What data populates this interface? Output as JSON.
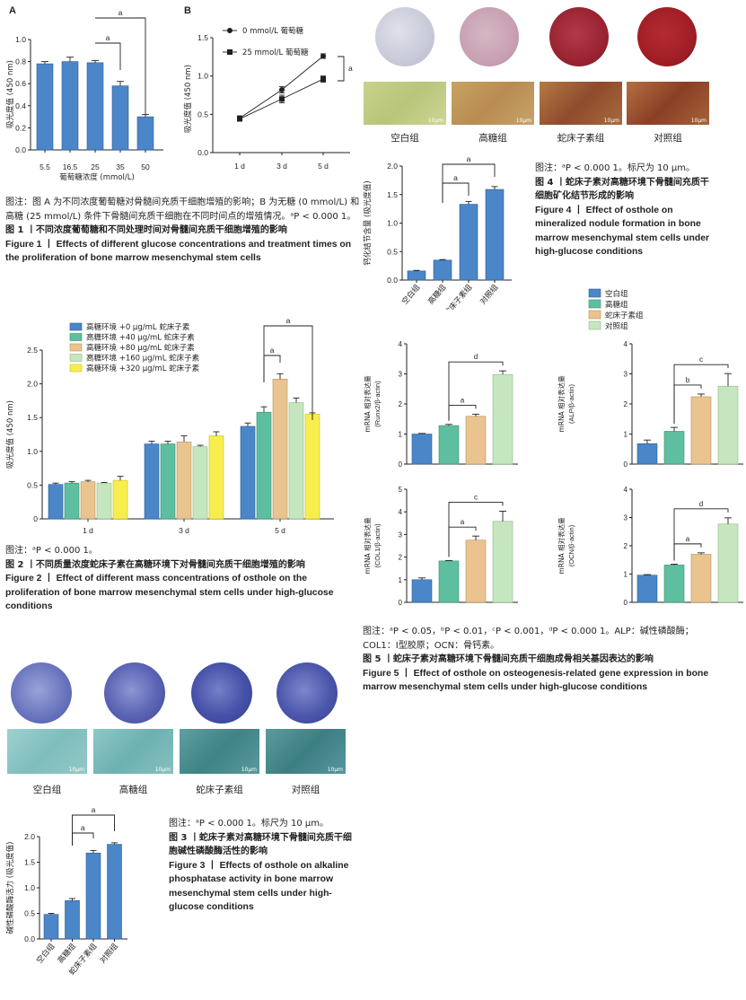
{
  "fig1": {
    "panelA": "A",
    "panelB": "B",
    "captionNote": "图注：图 A 为不同浓度葡萄糖对骨髓间充质干细胞增殖的影响；B 为无糖 (0 mmol/L) 和高糖 (25 mmol/L) 条件下骨髓间充质干细胞在不同时间点的增殖情况。ᵃP < 0.000 1。",
    "titleZh": "图 1 丨不同浓度葡萄糖和不同处理时间对骨髓间充质干细胞增殖的影响",
    "titleEn": "Figure 1 丨 Effects of different glucose concentrations and treatment times on the proliferation of bone marrow mesenchymal stem cells"
  },
  "fig2": {
    "captionNote": "图注：ᵃP < 0.000 1。",
    "titleZh": "图 2 丨不同质量浓度蛇床子素在高糖环境下对骨髓间充质干细胞增殖的影响",
    "titleEn": "Figure 2 丨 Effect of different mass concentrations of osthole on the proliferation of bone marrow mesenchymal stem cells under high-glucose conditions"
  },
  "fig3": {
    "groups": [
      "空白组",
      "高糖组",
      "蛇床子素组",
      "对照组"
    ],
    "scaleLabel": "10μm",
    "captionNote": "图注：ᵃP < 0.000 1。标尺为 10 μm。",
    "titleZh": "图 3 丨蛇床子素对高糖环境下骨髓间充质干细胞碱性磷酸酶活性的影响",
    "titleEn": "Figure 3 丨 Effects of osthole on alkaline phosphatase activity in bone marrow mesenchymal stem cells under high-glucose conditions"
  },
  "fig4": {
    "groups": [
      "空白组",
      "高糖组",
      "蛇床子素组",
      "对照组"
    ],
    "scaleLabel": "10μm",
    "captionNote": "图注：ᵃP < 0.000 1。标尺为 10 μm。",
    "titleZh": "图 4 丨蛇床子素对高糖环境下骨髓间充质干细胞矿化结节形成的影响",
    "titleEn": "Figure 4 丨 Effect of osthole on mineralized nodule formation in bone marrow mesenchymal stem cells under high-glucose conditions"
  },
  "fig5": {
    "captionNote": "图注：ᵃP < 0.05，ᵇP < 0.01，ᶜP < 0.001，ᵈP < 0.000 1。ALP：碱性磷酸酶；COL1：Ⅰ型胶原；OCN：骨钙素。",
    "titleZh": "图 5 丨蛇床子素对高糖环境下骨髓间充质干细胞成骨相关基因表达的影响",
    "titleEn": "Figure 5 丨 Effect of osthole on osteogenesis-related gene expression in bone marrow mesenchymal stem cells under high-glucose conditions"
  },
  "colors": {
    "blue": "#4a86c8",
    "teal": "#5dbf9f",
    "tan": "#e9c48f",
    "lightgreen": "#c6e6c0",
    "yellow": "#f7ee4d"
  },
  "chart_data": [
    {
      "id": "fig1A",
      "type": "bar",
      "categories": [
        "5.5",
        "16.5",
        "25",
        "35",
        "50"
      ],
      "values": [
        0.78,
        0.8,
        0.79,
        0.58,
        0.3
      ],
      "errors": [
        0.02,
        0.04,
        0.02,
        0.04,
        0.02
      ],
      "xlabel": "葡萄糖浓度 (mmol/L)",
      "ylabel": "吸光度值 (450 nm)",
      "ylim": [
        0,
        1.0
      ],
      "yticks": [
        "0.0",
        "0.2",
        "0.4",
        "0.6",
        "0.8",
        "1.0"
      ],
      "sig": [
        {
          "from": 2,
          "to": 3,
          "label": "a"
        },
        {
          "from": 2,
          "to": 4,
          "label": "a"
        }
      ]
    },
    {
      "id": "fig1B",
      "type": "line",
      "categories": [
        "1 d",
        "3 d",
        "5 d"
      ],
      "series": [
        {
          "name": "0 mmol/L 葡萄糖",
          "marker": "circle",
          "values": [
            0.45,
            0.82,
            1.26
          ],
          "errors": [
            0.03,
            0.04,
            0.03
          ]
        },
        {
          "name": "25 mmol/L 葡萄糖",
          "marker": "square",
          "values": [
            0.44,
            0.7,
            0.96
          ],
          "errors": [
            0.03,
            0.05,
            0.04
          ]
        }
      ],
      "ylabel": "吸光度值 (450 nm)",
      "ylim": [
        0,
        1.5
      ],
      "yticks": [
        "0.0",
        "0.5",
        "1.0",
        "1.5"
      ],
      "legend": "top-left",
      "sig": [
        {
          "label": "a"
        }
      ]
    },
    {
      "id": "fig2",
      "type": "bar",
      "categories": [
        "1 d",
        "3 d",
        "5 d"
      ],
      "series": [
        {
          "name": "高糖环境 +0 μg/mL 蛇床子素",
          "values": [
            0.51,
            1.11,
            1.37
          ],
          "errors": [
            0.02,
            0.04,
            0.05
          ]
        },
        {
          "name": "高糖环境 +40 μg/mL 蛇床子素",
          "values": [
            0.53,
            1.11,
            1.58
          ],
          "errors": [
            0.02,
            0.04,
            0.08
          ]
        },
        {
          "name": "高糖环境 +80 μg/mL 蛇床子素",
          "values": [
            0.55,
            1.14,
            2.07
          ],
          "errors": [
            0.02,
            0.09,
            0.08
          ]
        },
        {
          "name": "高糖环境 +160 μg/mL 蛇床子素",
          "values": [
            0.53,
            1.07,
            1.72
          ],
          "errors": [
            0.01,
            0.02,
            0.07
          ]
        },
        {
          "name": "高糖环境 +320 μg/mL 蛇床子素",
          "values": [
            0.57,
            1.23,
            1.55
          ],
          "errors": [
            0.06,
            0.06,
            0.02
          ]
        }
      ],
      "ylabel": "吸光度值 (450 nm)",
      "ylim": [
        0,
        2.5
      ],
      "yticks": [
        "0",
        "0.5",
        "1.0",
        "1.5",
        "2.0",
        "2.5"
      ],
      "legend": "top-left",
      "sig": [
        {
          "label": "a"
        },
        {
          "label": "a"
        }
      ]
    },
    {
      "id": "fig3chart",
      "type": "bar",
      "categories": [
        "空白组",
        "高糖组",
        "蛇床子素组",
        "对照组"
      ],
      "values": [
        0.48,
        0.75,
        1.68,
        1.85
      ],
      "errors": [
        0.02,
        0.04,
        0.05,
        0.03
      ],
      "ylabel": "碱性磷酸酶活力 (吸光度值)",
      "ylim": [
        0,
        2.0
      ],
      "yticks": [
        "0.0",
        "0.5",
        "1.0",
        "1.5",
        "2.0"
      ],
      "sig": [
        {
          "from": 1,
          "to": 2,
          "label": "a"
        },
        {
          "from": 1,
          "to": 3,
          "label": "a"
        }
      ]
    },
    {
      "id": "fig4chart",
      "type": "bar",
      "categories": [
        "空白组",
        "高糖组",
        "蛇床子素组",
        "对照组"
      ],
      "values": [
        0.16,
        0.35,
        1.33,
        1.59
      ],
      "errors": [
        0.01,
        0.01,
        0.05,
        0.05
      ],
      "ylabel": "钙化结节含量 (吸光度值)",
      "ylim": [
        0,
        2.0
      ],
      "yticks": [
        "0.0",
        "0.5",
        "1.0",
        "1.5",
        "2.0"
      ],
      "sig": [
        {
          "from": 1,
          "to": 2,
          "label": "a"
        },
        {
          "from": 1,
          "to": 3,
          "label": "a"
        }
      ]
    },
    {
      "id": "fig5",
      "type": "bar",
      "legend_entries": [
        "空白组",
        "高糖组",
        "蛇床子素组",
        "对照组"
      ],
      "panels": [
        {
          "id": "runx2",
          "ylabel": "mRNA 相对表达量 (Runx2/β-actin)",
          "ylim": [
            0,
            4
          ],
          "yticks": [
            "0",
            "1",
            "2",
            "3",
            "4"
          ],
          "values": [
            1.0,
            1.28,
            1.59,
            2.98
          ],
          "errors": [
            0.02,
            0.04,
            0.07,
            0.12
          ],
          "sig": [
            {
              "from": 1,
              "to": 2,
              "label": "a"
            },
            {
              "from": 1,
              "to": 3,
              "label": "d"
            }
          ]
        },
        {
          "id": "alp",
          "ylabel": "mRNA 相对表达量 (ALP/β-actin)",
          "ylim": [
            0,
            4
          ],
          "yticks": [
            "0",
            "1",
            "2",
            "3",
            "4"
          ],
          "values": [
            0.68,
            1.09,
            2.24,
            2.59
          ],
          "errors": [
            0.12,
            0.13,
            0.09,
            0.42
          ],
          "sig": [
            {
              "from": 1,
              "to": 2,
              "label": "b"
            },
            {
              "from": 1,
              "to": 3,
              "label": "c"
            }
          ]
        },
        {
          "id": "col1",
          "ylabel": "mRNA 相对表达量 (COL1/β-actin)",
          "ylim": [
            0,
            5
          ],
          "yticks": [
            "0",
            "1",
            "2",
            "3",
            "4",
            "5"
          ],
          "values": [
            1.0,
            1.83,
            2.75,
            3.58
          ],
          "errors": [
            0.08,
            0.02,
            0.18,
            0.45
          ],
          "sig": [
            {
              "from": 1,
              "to": 2,
              "label": "a"
            },
            {
              "from": 1,
              "to": 3,
              "label": "c"
            }
          ]
        },
        {
          "id": "ocn",
          "ylabel": "mRNA 相对表达量 (OCN/β-actin)",
          "ylim": [
            0,
            4
          ],
          "yticks": [
            "0",
            "1",
            "2",
            "3",
            "4"
          ],
          "values": [
            0.96,
            1.32,
            1.7,
            2.77
          ],
          "errors": [
            0.02,
            0.03,
            0.05,
            0.22
          ],
          "sig": [
            {
              "from": 1,
              "to": 2,
              "label": "a"
            },
            {
              "from": 1,
              "to": 3,
              "label": "d"
            }
          ]
        }
      ]
    }
  ]
}
